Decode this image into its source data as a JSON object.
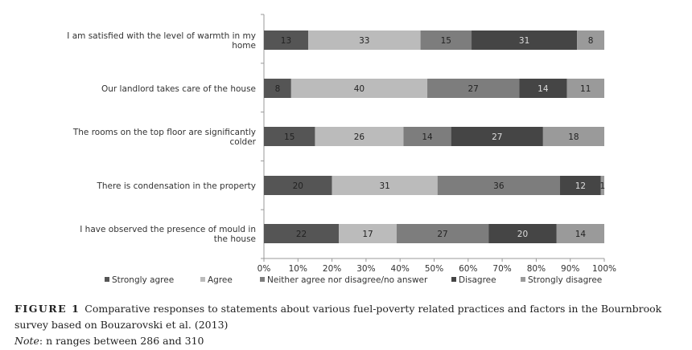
{
  "chart_data": {
    "type": "bar",
    "orientation": "horizontal",
    "stacked": "percent",
    "categories": [
      [
        "I am satisfied with the level of warmth in my",
        "home"
      ],
      [
        "Our landlord takes care of the house"
      ],
      [
        "The rooms on the top floor are significantly",
        "colder"
      ],
      [
        "There is condensation in the property"
      ],
      [
        "I have observed the presence of mould in",
        "the house"
      ]
    ],
    "series": [
      {
        "name": "Strongly agree",
        "color": "#555555",
        "label_color": "#222222",
        "values": [
          13,
          8,
          15,
          20,
          22
        ]
      },
      {
        "name": "Agree",
        "color": "#bbbbbb",
        "label_color": "#222222",
        "values": [
          33,
          40,
          26,
          31,
          17
        ]
      },
      {
        "name": "Neither agree nor disagree/no answer",
        "color": "#7d7d7d",
        "label_color": "#222222",
        "values": [
          15,
          27,
          14,
          36,
          27
        ]
      },
      {
        "name": "Disagree",
        "color": "#454545",
        "label_color": "#dddddd",
        "values": [
          31,
          14,
          27,
          12,
          20
        ]
      },
      {
        "name": "Strongly disagree",
        "color": "#9a9a9a",
        "label_color": "#222222",
        "values": [
          8,
          11,
          18,
          1,
          14
        ]
      }
    ],
    "xlim": [
      0,
      100
    ],
    "xticks": [
      "0%",
      "10%",
      "20%",
      "30%",
      "40%",
      "50%",
      "60%",
      "70%",
      "80%",
      "90%",
      "100%"
    ],
    "legend_position": "bottom",
    "grid": false
  },
  "caption": {
    "figure_label": "FIGURE 1",
    "text": "Comparative responses to statements about various fuel-poverty related practices and factors in the Bournbrook survey based on Bouzarovski et al. (2013)",
    "note_label": "Note",
    "note_text": ": n ranges between 286 and 310"
  }
}
